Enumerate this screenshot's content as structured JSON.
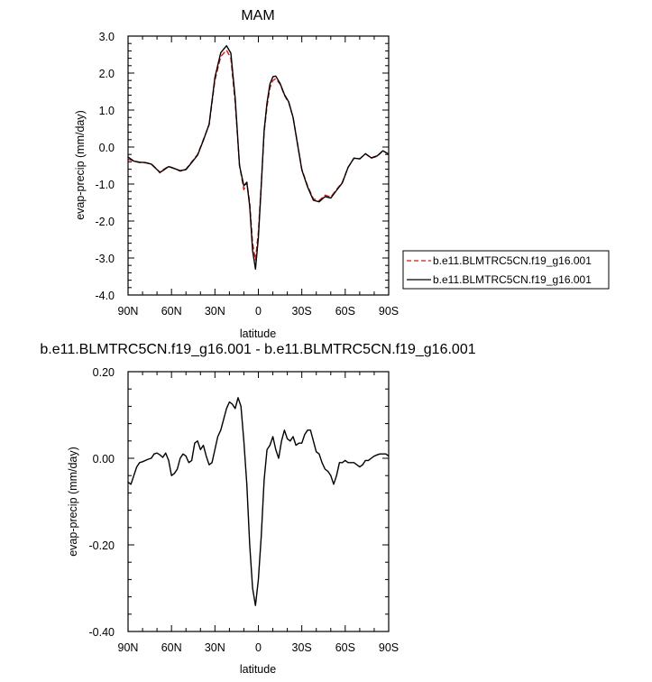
{
  "chart_data": [
    {
      "type": "line",
      "title": "MAM",
      "xlabel": "latitude",
      "ylabel": "evap-precip (mm/day)",
      "xlim": [
        90,
        -90
      ],
      "ylim": [
        -4.0,
        3.0
      ],
      "x_ticks": [
        90,
        60,
        30,
        0,
        -30,
        -60,
        -90
      ],
      "x_tick_labels": [
        "90N",
        "60N",
        "30N",
        "0",
        "30S",
        "60S",
        "90S"
      ],
      "y_ticks": [
        -4.0,
        -3.0,
        -2.0,
        -1.0,
        0.0,
        1.0,
        2.0,
        3.0
      ],
      "y_tick_labels": [
        "-4.0",
        "-3.0",
        "-2.0",
        "-1.0",
        "0.0",
        "1.0",
        "2.0",
        "3.0"
      ],
      "grid": false,
      "legend": {
        "placement": "outside-right"
      },
      "x": [
        90,
        86,
        82,
        78,
        74,
        70,
        68,
        66,
        62,
        58,
        54,
        50,
        46,
        42,
        38,
        34,
        30,
        26,
        22,
        19,
        16,
        13,
        10,
        8,
        6,
        4,
        2,
        0,
        -2,
        -4,
        -6,
        -8,
        -10,
        -12,
        -15,
        -18,
        -21,
        -24,
        -27,
        -30,
        -34,
        -38,
        -42,
        -46,
        -50,
        -54,
        -58,
        -62,
        -66,
        -70,
        -74,
        -78,
        -82,
        -86,
        -90
      ],
      "series": [
        {
          "name": "b.e11.BLMTRC5CN.f19_g16.001",
          "color": "#dd1111",
          "dash": "dashed",
          "values": [
            -0.33,
            -0.38,
            -0.42,
            -0.43,
            -0.45,
            -0.6,
            -0.7,
            -0.62,
            -0.52,
            -0.58,
            -0.65,
            -0.6,
            -0.4,
            -0.2,
            0.2,
            0.6,
            1.8,
            2.45,
            2.62,
            2.4,
            1.2,
            -0.5,
            -1.15,
            -0.95,
            -1.5,
            -2.6,
            -3.05,
            -2.3,
            -1.0,
            0.4,
            1.1,
            1.6,
            1.8,
            1.85,
            1.7,
            1.4,
            1.2,
            0.8,
            0.1,
            -0.6,
            -1.05,
            -1.4,
            -1.45,
            -1.3,
            -1.35,
            -1.15,
            -0.95,
            -0.55,
            -0.3,
            -0.32,
            -0.18,
            -0.3,
            -0.25,
            -0.1,
            -0.2
          ]
        },
        {
          "name": "b.e11.BLMTRC5CN.f19_g16.001",
          "color": "#000000",
          "dash": "solid",
          "values": [
            -0.27,
            -0.38,
            -0.41,
            -0.42,
            -0.46,
            -0.61,
            -0.68,
            -0.64,
            -0.53,
            -0.58,
            -0.64,
            -0.61,
            -0.42,
            -0.22,
            0.18,
            0.62,
            1.88,
            2.55,
            2.74,
            2.54,
            1.32,
            -0.5,
            -1.05,
            -0.95,
            -1.6,
            -2.8,
            -3.3,
            -2.45,
            -1.05,
            0.45,
            1.2,
            1.7,
            1.9,
            1.92,
            1.72,
            1.42,
            1.22,
            0.8,
            0.08,
            -0.62,
            -1.08,
            -1.44,
            -1.48,
            -1.34,
            -1.38,
            -1.17,
            -0.97,
            -0.55,
            -0.3,
            -0.32,
            -0.18,
            -0.29,
            -0.24,
            -0.1,
            -0.19
          ]
        }
      ]
    },
    {
      "type": "line",
      "title": "b.e11.BLMTRC5CN.f19_g16.001 - b.e11.BLMTRC5CN.f19_g16.001",
      "xlabel": "latitude",
      "ylabel": "evap-precip (mm/day)",
      "xlim": [
        90,
        -90
      ],
      "ylim": [
        -0.4,
        0.2
      ],
      "x_ticks": [
        90,
        60,
        30,
        0,
        -30,
        -60,
        -90
      ],
      "x_tick_labels": [
        "90N",
        "60N",
        "30N",
        "0",
        "30S",
        "60S",
        "90S"
      ],
      "y_ticks": [
        -0.4,
        -0.2,
        0.0,
        0.2
      ],
      "y_tick_labels": [
        "-0.40",
        "-0.20",
        "0.00",
        "0.20"
      ],
      "grid": false,
      "x": [
        90,
        88,
        86,
        84,
        82,
        80,
        78,
        76,
        74,
        72,
        70,
        68,
        66,
        64,
        62,
        60,
        58,
        56,
        54,
        52,
        50,
        48,
        46,
        44,
        42,
        40,
        38,
        36,
        34,
        32,
        30,
        28,
        26,
        24,
        22,
        20,
        18,
        16,
        14,
        12,
        10,
        8,
        6,
        4,
        2,
        0,
        -2,
        -4,
        -6,
        -8,
        -10,
        -12,
        -14,
        -16,
        -18,
        -20,
        -22,
        -24,
        -26,
        -28,
        -30,
        -32,
        -34,
        -36,
        -38,
        -40,
        -42,
        -44,
        -46,
        -48,
        -50,
        -52,
        -54,
        -56,
        -58,
        -60,
        -62,
        -64,
        -66,
        -68,
        -70,
        -72,
        -74,
        -76,
        -78,
        -80,
        -82,
        -84,
        -86,
        -88,
        -90
      ],
      "series": [
        {
          "name": "",
          "color": "#000000",
          "dash": "solid",
          "values": [
            -0.055,
            -0.06,
            -0.04,
            -0.02,
            -0.01,
            -0.008,
            -0.005,
            -0.002,
            0.0,
            0.01,
            0.012,
            0.008,
            0.002,
            0.012,
            -0.005,
            -0.04,
            -0.035,
            -0.025,
            0.0,
            0.01,
            0.005,
            -0.01,
            -0.005,
            0.035,
            0.04,
            0.02,
            0.03,
            0.005,
            -0.015,
            -0.01,
            0.02,
            0.05,
            0.065,
            0.09,
            0.115,
            0.13,
            0.125,
            0.115,
            0.14,
            0.12,
            0.04,
            -0.06,
            -0.2,
            -0.3,
            -0.34,
            -0.28,
            -0.18,
            -0.05,
            0.02,
            0.03,
            0.05,
            0.02,
            0.0,
            0.04,
            0.065,
            0.045,
            0.04,
            0.05,
            0.03,
            0.035,
            0.035,
            0.055,
            0.065,
            0.065,
            0.04,
            0.015,
            0.01,
            -0.01,
            -0.025,
            -0.03,
            -0.04,
            -0.06,
            -0.04,
            -0.01,
            -0.01,
            -0.005,
            -0.01,
            -0.01,
            -0.01,
            -0.015,
            -0.02,
            -0.015,
            -0.005,
            -0.005,
            0.0,
            0.005,
            0.008,
            0.01,
            0.01,
            0.01,
            0.005
          ]
        }
      ]
    }
  ]
}
